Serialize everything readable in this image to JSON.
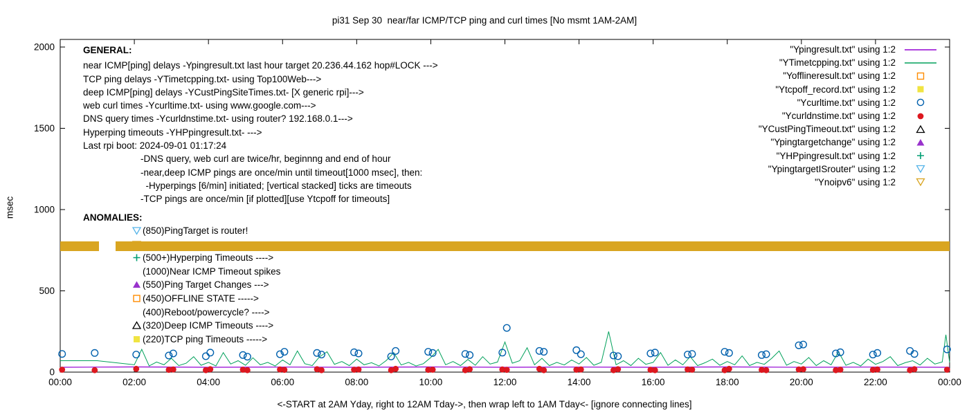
{
  "title": "pi31 Sep 30  near/far ICMP/TCP ping and curl times [No msmt 1AM-2AM]",
  "ylabel": "msec",
  "xlabel_bottom": "<-START at 2AM Yday, right to 12AM Tday->, then wrap left to 1AM Tday<- [ignore connecting lines]",
  "general": {
    "heading": "GENERAL:",
    "lines": [
      "near ICMP[ping] delays -Ypingresult.txt last hour target 20.236.44.162 hop#LOCK --->",
      "TCP ping delays -YTimetcpping.txt- using Top100Web--->",
      "deep ICMP[ping] delays -YCustPingSiteTimes.txt- [X generic rpi]--->",
      "web curl times -Ycurltime.txt- using www.google.com--->",
      "DNS query times -Ycurldnstime.txt- using router? 192.168.0.1--->",
      "Hyperping timeouts -YHPpingresult.txt- --->",
      "Last rpi boot: 2024-09-01 01:17:24"
    ],
    "indented_lines": [
      "-DNS query, web curl are twice/hr, beginnng and end of hour",
      "-near,deep ICMP pings are once/min until timeout[1000 msec], then:",
      "  -Hyperpings [6/min] initiated; [vertical stacked] ticks are timeouts",
      "-TCP pings are once/min [if plotted][use Ytcpoff for timeouts]"
    ]
  },
  "anomalies": {
    "heading": "ANOMALIES:",
    "items": [
      {
        "marker": "triangle-down-open",
        "color": "#56b4e9",
        "text": "(850)PingTarget is router!"
      },
      {
        "marker": "triangle-down-open",
        "color": "#d9a521",
        "text": ""
      },
      {
        "marker": "plus",
        "color": "#009e73",
        "text": "(500+)Hyperping Timeouts ---->"
      },
      {
        "marker": "",
        "color": "",
        "text": "(1000)Near ICMP Timeout spikes"
      },
      {
        "marker": "triangle-filled",
        "color": "#9932cc",
        "text": "(550)Ping Target Changes --->"
      },
      {
        "marker": "square-open",
        "color": "#ff8c00",
        "text": "(450)OFFLINE STATE ----->"
      },
      {
        "marker": "",
        "color": "",
        "text": "(400)Reboot/powercycle? ---->"
      },
      {
        "marker": "triangle-open",
        "color": "#000000",
        "text": "(320)Deep ICMP Timeouts ---->"
      },
      {
        "marker": "square-filled",
        "color": "#f0e442",
        "text": "(220)TCP ping Timeouts ----->"
      }
    ]
  },
  "legend": {
    "entries": [
      {
        "label": "\"Ypingresult.txt\" using 1:2",
        "marker": "line",
        "color": "#9400d3"
      },
      {
        "label": "\"YTimetcpping.txt\" using 1:2",
        "marker": "line",
        "color": "#00a05a"
      },
      {
        "label": "\"Yofflineresult.txt\" using 1:2",
        "marker": "square-open",
        "color": "#ff8c00"
      },
      {
        "label": "\"Ytcpoff_record.txt\" using 1:2",
        "marker": "square-filled",
        "color": "#f0e442"
      },
      {
        "label": "\"Ycurltime.txt\" using 1:2",
        "marker": "circle-open",
        "color": "#0060ad"
      },
      {
        "label": "\"Ycurldnstime.txt\" using 1:2",
        "marker": "circle-filled",
        "color": "#dd181f"
      },
      {
        "label": "\"YCustPingTimeout.txt\" using 1:2",
        "marker": "triangle-open",
        "color": "#000000"
      },
      {
        "label": "\"Ypingtargetchange\" using 1:2",
        "marker": "triangle-filled",
        "color": "#9932cc"
      },
      {
        "label": "\"YHPpingresult.txt\" using 1:2",
        "marker": "plus",
        "color": "#009e73"
      },
      {
        "label": "\"YpingtargetISrouter\" using 1:2",
        "marker": "triangle-down-open",
        "color": "#56b4e9"
      },
      {
        "label": "\"Ynoipv6\" using 1:2",
        "marker": "triangle-down-open",
        "color": "#d9a521"
      }
    ]
  },
  "chart_data": {
    "type": "scatter",
    "title": "pi31 Sep 30  near/far ICMP/TCP ping and curl times [No msmt 1AM-2AM]",
    "xlabel": "<-START at 2AM Yday, right to 12AM Tday->, then wrap left to 1AM Tday<- [ignore connecting lines]",
    "ylabel": "msec",
    "ylim": [
      0,
      2000
    ],
    "x_hours_lim": [
      0,
      24
    ],
    "grid": false,
    "legend_position": "top-right",
    "y_ticks": [
      0,
      500,
      1000,
      1500,
      2000
    ],
    "x_ticks": [
      {
        "h": 0,
        "label": "00:00"
      },
      {
        "h": 2,
        "label": "02:00"
      },
      {
        "h": 4,
        "label": "04:00"
      },
      {
        "h": 6,
        "label": "06:00"
      },
      {
        "h": 8,
        "label": "08:00"
      },
      {
        "h": 10,
        "label": "10:00"
      },
      {
        "h": 12,
        "label": "12:00"
      },
      {
        "h": 14,
        "label": "14:00"
      },
      {
        "h": 16,
        "label": "16:00"
      },
      {
        "h": 18,
        "label": "18:00"
      },
      {
        "h": 20,
        "label": "20:00"
      },
      {
        "h": 22,
        "label": "22:00"
      },
      {
        "h": 24,
        "label": "00:00"
      }
    ],
    "series": [
      {
        "name": "Ypingresult.txt",
        "style": "line",
        "color": "#9400d3",
        "width": 1.2,
        "points": [
          [
            0,
            30
          ],
          [
            2,
            32
          ],
          [
            4,
            30
          ],
          [
            6,
            31
          ],
          [
            8,
            30
          ],
          [
            10,
            32
          ],
          [
            12,
            30
          ],
          [
            14,
            31
          ],
          [
            16,
            30
          ],
          [
            18,
            32
          ],
          [
            20,
            30
          ],
          [
            22,
            31
          ],
          [
            24,
            30
          ]
        ]
      },
      {
        "name": "YTimetcpping.txt",
        "style": "line",
        "color": "#00a05a",
        "width": 1,
        "points": [
          [
            0,
            70
          ],
          [
            0.2,
            70
          ],
          [
            0.4,
            70
          ],
          [
            0.6,
            70
          ],
          [
            0.8,
            70
          ],
          [
            1,
            70
          ],
          [
            2,
            45
          ],
          [
            2.2,
            140
          ],
          [
            2.4,
            38
          ],
          [
            2.6,
            62
          ],
          [
            2.8,
            45
          ],
          [
            3,
            85
          ],
          [
            3.2,
            40
          ],
          [
            3.4,
            55
          ],
          [
            3.6,
            95
          ],
          [
            3.8,
            42
          ],
          [
            4,
            60
          ],
          [
            4.2,
            38
          ],
          [
            4.4,
            120
          ],
          [
            4.6,
            50
          ],
          [
            4.8,
            70
          ],
          [
            5,
            42
          ],
          [
            5.2,
            88
          ],
          [
            5.4,
            45
          ],
          [
            5.6,
            60
          ],
          [
            5.8,
            38
          ],
          [
            6,
            75
          ],
          [
            6.2,
            45
          ],
          [
            6.4,
            130
          ],
          [
            6.6,
            52
          ],
          [
            6.8,
            40
          ],
          [
            7,
            95
          ],
          [
            7.2,
            125
          ],
          [
            7.4,
            48
          ],
          [
            7.6,
            65
          ],
          [
            7.8,
            40
          ],
          [
            8,
            80
          ],
          [
            8.2,
            45
          ],
          [
            8.4,
            58
          ],
          [
            8.6,
            38
          ],
          [
            8.8,
            72
          ],
          [
            9,
            120
          ],
          [
            9.2,
            44
          ],
          [
            9.4,
            60
          ],
          [
            9.6,
            38
          ],
          [
            9.8,
            52
          ],
          [
            10,
            90
          ],
          [
            10.2,
            140
          ],
          [
            10.4,
            45
          ],
          [
            10.6,
            65
          ],
          [
            10.8,
            40
          ],
          [
            11,
            78
          ],
          [
            11.2,
            42
          ],
          [
            11.4,
            95
          ],
          [
            11.6,
            50
          ],
          [
            11.8,
            62
          ],
          [
            12,
            185
          ],
          [
            12.2,
            55
          ],
          [
            12.4,
            70
          ],
          [
            12.6,
            150
          ],
          [
            12.8,
            45
          ],
          [
            13,
            85
          ],
          [
            13.2,
            40
          ],
          [
            13.4,
            60
          ],
          [
            13.6,
            44
          ],
          [
            13.8,
            75
          ],
          [
            14,
            50
          ],
          [
            14.2,
            90
          ],
          [
            14.4,
            42
          ],
          [
            14.6,
            60
          ],
          [
            14.8,
            250
          ],
          [
            15,
            45
          ],
          [
            15.2,
            70
          ],
          [
            15.4,
            40
          ],
          [
            15.6,
            85
          ],
          [
            15.8,
            48
          ],
          [
            16,
            60
          ],
          [
            16.2,
            120
          ],
          [
            16.4,
            42
          ],
          [
            16.6,
            75
          ],
          [
            16.8,
            45
          ],
          [
            17,
            95
          ],
          [
            17.2,
            40
          ],
          [
            17.4,
            58
          ],
          [
            17.6,
            80
          ],
          [
            17.8,
            42
          ],
          [
            18,
            65
          ],
          [
            18.2,
            45
          ],
          [
            18.4,
            100
          ],
          [
            18.6,
            40
          ],
          [
            18.8,
            60
          ],
          [
            19,
            48
          ],
          [
            19.2,
            85
          ],
          [
            19.4,
            130
          ],
          [
            19.6,
            42
          ],
          [
            19.8,
            65
          ],
          [
            20,
            50
          ],
          [
            20.2,
            90
          ],
          [
            20.4,
            40
          ],
          [
            20.6,
            70
          ],
          [
            20.8,
            45
          ],
          [
            21,
            125
          ],
          [
            21.2,
            42
          ],
          [
            21.4,
            60
          ],
          [
            21.6,
            38
          ],
          [
            21.8,
            80
          ],
          [
            22,
            48
          ],
          [
            22.2,
            65
          ],
          [
            22.4,
            95
          ],
          [
            22.6,
            40
          ],
          [
            22.8,
            58
          ],
          [
            23,
            70
          ],
          [
            23.2,
            44
          ],
          [
            23.4,
            85
          ],
          [
            23.6,
            50
          ],
          [
            23.8,
            62
          ],
          [
            23.9,
            230
          ],
          [
            24,
            60
          ]
        ]
      },
      {
        "name": "Ycurltime.txt",
        "style": "points",
        "marker": "circle-open",
        "color": "#0060ad",
        "points": [
          [
            0.05,
            112
          ],
          [
            0.93,
            118
          ],
          [
            2.05,
            108
          ],
          [
            2.93,
            102
          ],
          [
            3.05,
            115
          ],
          [
            3.93,
            98
          ],
          [
            4.05,
            120
          ],
          [
            4.93,
            105
          ],
          [
            5.05,
            95
          ],
          [
            5.93,
            110
          ],
          [
            6.05,
            125
          ],
          [
            6.93,
            118
          ],
          [
            7.05,
            108
          ],
          [
            7.93,
            122
          ],
          [
            8.05,
            115
          ],
          [
            8.93,
            96
          ],
          [
            9.05,
            130
          ],
          [
            9.93,
            125
          ],
          [
            10.05,
            118
          ],
          [
            10.93,
            112
          ],
          [
            11.05,
            105
          ],
          [
            11.93,
            120
          ],
          [
            12.05,
            272
          ],
          [
            12.93,
            130
          ],
          [
            13.05,
            125
          ],
          [
            13.93,
            135
          ],
          [
            14.05,
            110
          ],
          [
            14.93,
            102
          ],
          [
            15.05,
            98
          ],
          [
            15.93,
            115
          ],
          [
            16.05,
            120
          ],
          [
            16.93,
            108
          ],
          [
            17.05,
            112
          ],
          [
            17.93,
            125
          ],
          [
            18.05,
            118
          ],
          [
            18.93,
            105
          ],
          [
            19.05,
            110
          ],
          [
            19.93,
            165
          ],
          [
            20.05,
            170
          ],
          [
            20.93,
            115
          ],
          [
            21.05,
            122
          ],
          [
            21.93,
            108
          ],
          [
            22.05,
            118
          ],
          [
            22.93,
            130
          ],
          [
            23.05,
            112
          ],
          [
            23.93,
            140
          ]
        ]
      },
      {
        "name": "Ycurldnstime.txt",
        "style": "points",
        "marker": "circle-filled",
        "color": "#dd181f",
        "points": [
          [
            0.05,
            15
          ],
          [
            0.93,
            12
          ],
          [
            2.05,
            20
          ],
          [
            2.93,
            14
          ],
          [
            3.05,
            16
          ],
          [
            3.93,
            12
          ],
          [
            4.05,
            18
          ],
          [
            4.93,
            15
          ],
          [
            5.05,
            12
          ],
          [
            5.93,
            16
          ],
          [
            6.05,
            14
          ],
          [
            6.93,
            18
          ],
          [
            7.05,
            12
          ],
          [
            7.93,
            15
          ],
          [
            8.05,
            16
          ],
          [
            8.93,
            12
          ],
          [
            9.05,
            20
          ],
          [
            9.93,
            14
          ],
          [
            10.05,
            15
          ],
          [
            10.93,
            12
          ],
          [
            11.05,
            18
          ],
          [
            11.93,
            16
          ],
          [
            12.05,
            14
          ],
          [
            12.93,
            20
          ],
          [
            13.05,
            12
          ],
          [
            13.93,
            15
          ],
          [
            14.05,
            16
          ],
          [
            14.93,
            12
          ],
          [
            15.05,
            18
          ],
          [
            15.93,
            14
          ],
          [
            16.05,
            12
          ],
          [
            16.93,
            16
          ],
          [
            17.05,
            15
          ],
          [
            17.93,
            12
          ],
          [
            18.05,
            20
          ],
          [
            18.93,
            14
          ],
          [
            19.05,
            12
          ],
          [
            19.93,
            16
          ],
          [
            20.05,
            18
          ],
          [
            20.93,
            12
          ],
          [
            21.05,
            15
          ],
          [
            21.93,
            14
          ],
          [
            22.05,
            16
          ],
          [
            22.93,
            12
          ],
          [
            23.05,
            18
          ],
          [
            23.93,
            15
          ]
        ]
      },
      {
        "name": "Ynoipv6",
        "style": "band",
        "color": "#d9a521",
        "value": 775,
        "segments": [
          [
            0,
            1.05
          ],
          [
            1.5,
            24
          ]
        ]
      }
    ]
  }
}
